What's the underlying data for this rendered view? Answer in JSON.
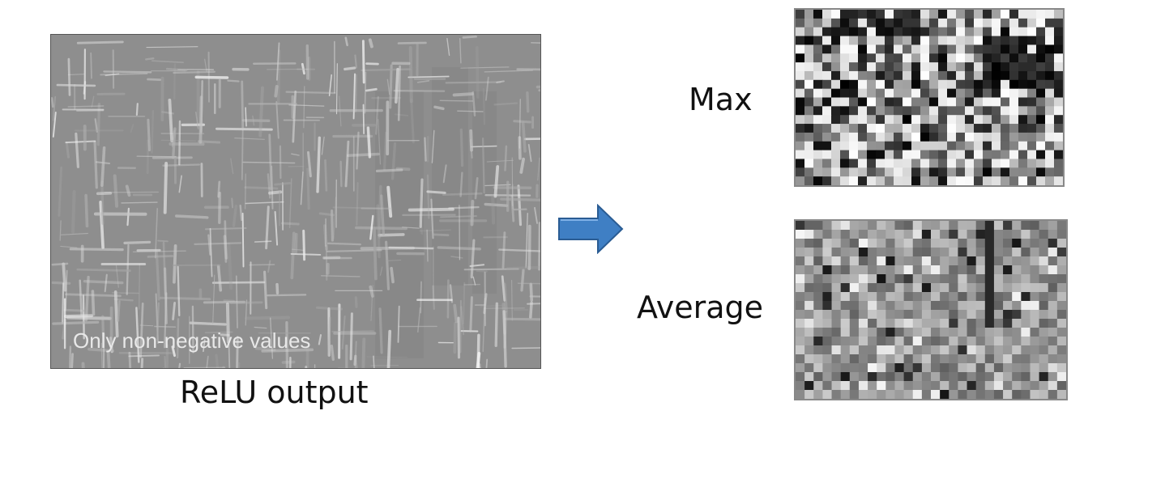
{
  "relu": {
    "note": "Only non-negative values",
    "caption": "ReLU output"
  },
  "pooling": {
    "max_label": "Max",
    "average_label": "Average"
  },
  "colors": {
    "relu_background": "#8e8e8e",
    "arrow_fill": "#3f7fc4",
    "arrow_stroke": "#2a5c93"
  },
  "icons": {
    "arrow": "right-arrow-icon"
  }
}
